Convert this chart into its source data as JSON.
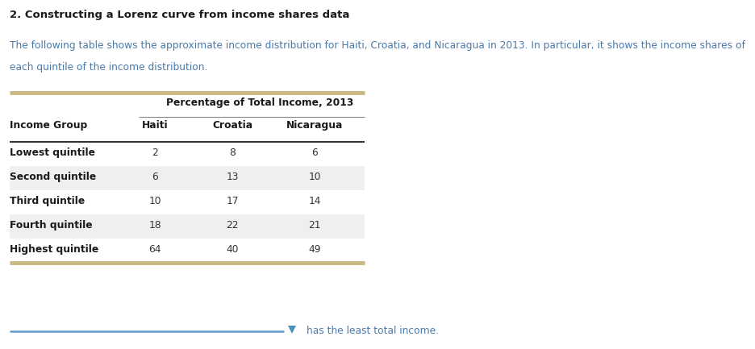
{
  "title": "2. Constructing a Lorenz curve from income shares data",
  "intro_line1": "The following table shows the approximate income distribution for Haiti, Croatia, and Nicaragua in 2013. In particular, it shows the income shares of",
  "intro_line2": "each quintile of the income distribution.",
  "table_header_main": "Percentage of Total Income, 2013",
  "col_headers": [
    "Income Group",
    "Haiti",
    "Croatia",
    "Nicaragua"
  ],
  "rows": [
    [
      "Lowest quintile",
      "2",
      "8",
      "6"
    ],
    [
      "Second quintile",
      "6",
      "13",
      "10"
    ],
    [
      "Third quintile",
      "10",
      "17",
      "14"
    ],
    [
      "Fourth quintile",
      "18",
      "22",
      "21"
    ],
    [
      "Highest quintile",
      "64",
      "40",
      "49"
    ]
  ],
  "bottom_text": "has the least total income.",
  "title_color": "#1a1a1a",
  "intro_color": "#4a7aaa",
  "table_header_color": "#1a1a1a",
  "col_header_color": "#1a1a1a",
  "row_label_color": "#1a1a1a",
  "data_color": "#333333",
  "top_rule_color": "#c8b882",
  "bottom_rule_color": "#c8b882",
  "mid_rule_color": "#333333",
  "header_underline_color": "#888888",
  "shaded_rows": [
    1,
    3
  ],
  "shaded_color": "#efefef",
  "dropdown_color": "#4a90b8",
  "dropdown_line_color": "#5b9bd5",
  "background_color": "#ffffff",
  "fig_width": 9.37,
  "fig_height": 4.33,
  "dpi": 100
}
